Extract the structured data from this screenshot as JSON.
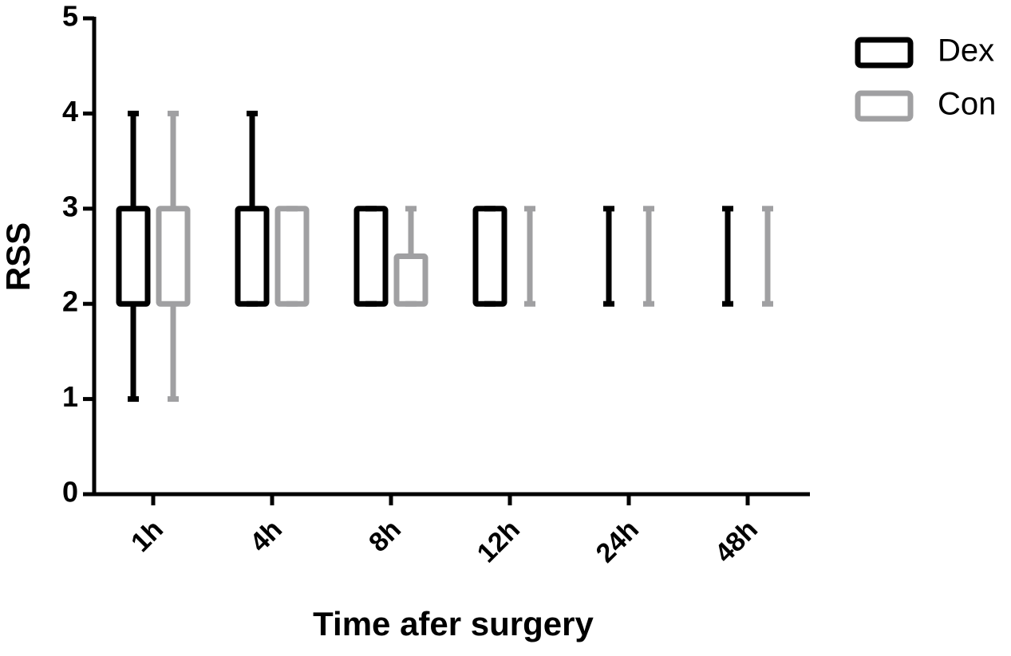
{
  "chart_data": {
    "type": "box",
    "xlabel": "Time afer surgery",
    "ylabel": "RSS",
    "categories": [
      "1h",
      "4h",
      "8h",
      "12h",
      "24h",
      "48h"
    ],
    "ylim": [
      0,
      5
    ],
    "yticks": [
      0,
      1,
      2,
      3,
      4,
      5
    ],
    "legend": "top-right",
    "series": [
      {
        "name": "Dex",
        "color": "#000000",
        "min": [
          1,
          2,
          2,
          2,
          2,
          2
        ],
        "q1": [
          2,
          2,
          2,
          2,
          2,
          2
        ],
        "q3": [
          3,
          3,
          3,
          3,
          2,
          2
        ],
        "max": [
          4,
          4,
          3,
          3,
          3,
          3
        ]
      },
      {
        "name": "Con",
        "color": "#a0a0a2",
        "min": [
          1,
          2,
          2,
          2,
          2,
          2
        ],
        "q1": [
          2,
          2,
          2,
          2,
          2,
          2
        ],
        "q3": [
          3,
          3,
          2.5,
          2,
          2,
          2
        ],
        "max": [
          4,
          3,
          3,
          3,
          3,
          3
        ]
      }
    ]
  }
}
